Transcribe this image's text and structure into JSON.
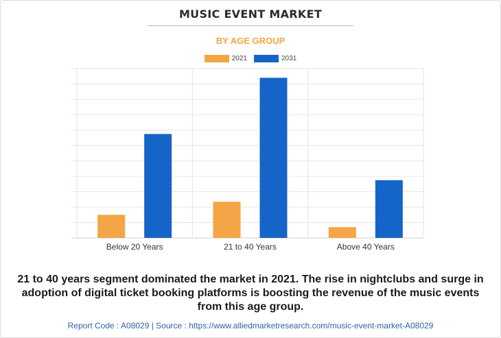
{
  "title": "MUSIC EVENT MARKET",
  "subtitle": "BY AGE GROUP",
  "colors": {
    "accent": "#f4a640",
    "series_2021": "#f4a545",
    "series_2031": "#1565c8",
    "footer": "#2f5fa5"
  },
  "chart_data": {
    "type": "bar",
    "categories": [
      "Below 20 Years",
      "21 to 40 Years",
      "Above 40 Years"
    ],
    "series": [
      {
        "name": "2021",
        "color": "#f4a545",
        "values": [
          1.5,
          2.35,
          0.7
        ]
      },
      {
        "name": "2031",
        "color": "#1565c8",
        "values": [
          6.75,
          10.4,
          3.75
        ]
      }
    ],
    "ylim": [
      0,
      11
    ],
    "ygrid_step": 1,
    "yaxis_labels_shown": false,
    "grid": true,
    "legend_position": "top-center"
  },
  "caption": "21 to 40 years segment dominated the market in 2021. The rise in nightclubs and surge in adoption of digital ticket booking platforms is boosting the revenue of the music events from this age group.",
  "footer": "Report Code : A08029  |  Source : https://www.alliedmarketresearch.com/music-event-market-A08029"
}
